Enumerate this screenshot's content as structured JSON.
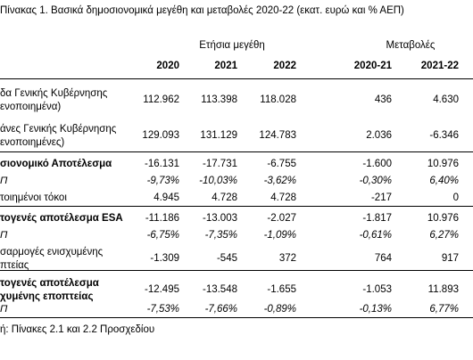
{
  "title": "Πίνακας 1. Βασικά δημοσιονομικά μεγέθη και μεταβολές 2020-22 (εκατ. ευρώ και % ΑΕΠ)",
  "groups": {
    "annual": "Ετήσια μεγέθη",
    "changes": "Μεταβολές"
  },
  "columns": [
    "2020",
    "2021",
    "2022",
    "2020-21",
    "2021-22"
  ],
  "rows": [
    {
      "label": [
        "δα Γενικής Κυβέρνησης",
        "ενοποιημένα)"
      ],
      "values": [
        "112.962",
        "113.398",
        "118.028",
        "436",
        "4.630"
      ],
      "style": "normal"
    },
    {
      "label": [
        "άνες Γενικής Κυβέρνησης",
        "ενοποιημένες)"
      ],
      "values": [
        "129.093",
        "131.129",
        "124.783",
        "2.036",
        "-6.346"
      ],
      "style": "normal"
    },
    {
      "label": [
        "σιονομικό Αποτέλεσμα"
      ],
      "values": [
        "-16.131",
        "-17.731",
        "-6.755",
        "-1.600",
        "10.976"
      ],
      "style": "bold"
    },
    {
      "label": [
        "Π"
      ],
      "values": [
        "-9,73%",
        "-10,03%",
        "-3,62%",
        "-0,30%",
        "6,40%"
      ],
      "style": "italic"
    },
    {
      "label": [
        "τοιημένοι τόκοι"
      ],
      "values": [
        "4.945",
        "4.728",
        "4.728",
        "-217",
        "0"
      ],
      "style": "normal"
    },
    {
      "label": [
        "τογενές αποτέλεσμα ESA"
      ],
      "values": [
        "-11.186",
        "-13.003",
        "-2.027",
        "-1.817",
        "10.976"
      ],
      "style": "bold"
    },
    {
      "label": [
        "Π"
      ],
      "values": [
        "-6,75%",
        "-7,35%",
        "-1,09%",
        "-0,61%",
        "6,27%"
      ],
      "style": "italic"
    },
    {
      "label": [
        "σαρμογές ενισχυμένης",
        "πτείας"
      ],
      "values": [
        "-1.309",
        "-545",
        "372",
        "764",
        "917"
      ],
      "style": "normal"
    },
    {
      "label": [
        "τογενές αποτέλεσμα",
        "χυμένης εποπτείας"
      ],
      "values": [
        "-12.495",
        "-13.548",
        "-1.655",
        "-1.053",
        "11.893"
      ],
      "style": "bold"
    },
    {
      "label": [
        "Π"
      ],
      "values": [
        "-7,53%",
        "-7,66%",
        "-0,89%",
        "-0,13%",
        "6,77%"
      ],
      "style": "italic"
    }
  ],
  "source": "ή: Πίνακες 2.1 και 2.2 Προσχεδίου"
}
